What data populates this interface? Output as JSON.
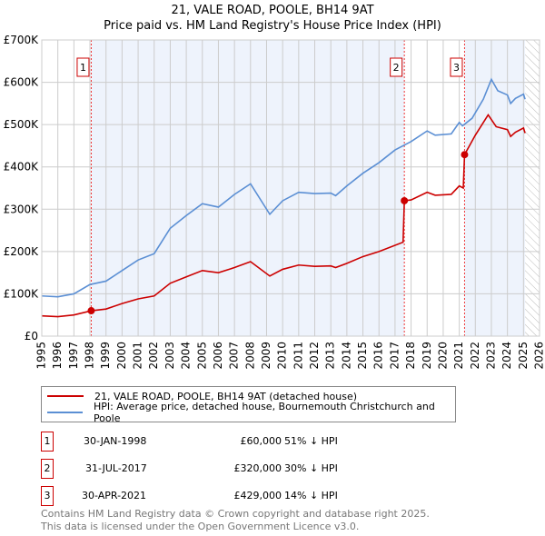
{
  "chart_data": {
    "type": "line",
    "title": "21, VALE ROAD, POOLE, BH14 9AT",
    "subtitle": "Price paid vs. HM Land Registry's House Price Index (HPI)",
    "xlim": [
      1995,
      2026
    ],
    "ylim": [
      0,
      700000
    ],
    "y_ticks": [
      {
        "v": 0,
        "l": "£0"
      },
      {
        "v": 100000,
        "l": "£100K"
      },
      {
        "v": 200000,
        "l": "£200K"
      },
      {
        "v": 300000,
        "l": "£300K"
      },
      {
        "v": 400000,
        "l": "£400K"
      },
      {
        "v": 500000,
        "l": "£500K"
      },
      {
        "v": 600000,
        "l": "£600K"
      },
      {
        "v": 700000,
        "l": "£700K"
      }
    ],
    "x_ticks": [
      "1995",
      "1996",
      "1997",
      "1998",
      "1999",
      "2000",
      "2001",
      "2002",
      "2003",
      "2004",
      "2005",
      "2006",
      "2007",
      "2008",
      "2009",
      "2010",
      "2011",
      "2012",
      "2013",
      "2014",
      "2015",
      "2016",
      "2017",
      "2018",
      "2019",
      "2020",
      "2021",
      "2022",
      "2023",
      "2024",
      "2025",
      "2026"
    ],
    "grid": true,
    "series": [
      {
        "name": "21, VALE ROAD, POOLE, BH14 9AT (detached house)",
        "color": "#cc0000",
        "x": [
          1995,
          1996,
          1997,
          1998.08,
          1999,
          2000,
          2001,
          2002,
          2003,
          2004,
          2005,
          2006,
          2007,
          2008,
          2009.2,
          2010,
          2011,
          2012,
          2013,
          2013.3,
          2014,
          2015,
          2016,
          2017.5,
          2017.58,
          2018,
          2019,
          2019.5,
          2020.5,
          2021,
          2021.25,
          2021.33,
          2022,
          2022.8,
          2023.3,
          2024,
          2024.2,
          2024.5,
          2025,
          2025.1
        ],
        "y": [
          48000,
          46000,
          50000,
          60000,
          64000,
          77000,
          88000,
          95000,
          125000,
          140000,
          155000,
          150000,
          162000,
          176000,
          142000,
          158000,
          168000,
          165000,
          166000,
          162000,
          172000,
          188000,
          200000,
          222000,
          320000,
          322000,
          340000,
          333000,
          335000,
          355000,
          350000,
          429000,
          475000,
          523000,
          495000,
          488000,
          472000,
          482000,
          492000,
          480000
        ]
      },
      {
        "name": "HPI: Average price, detached house, Bournemouth Christchurch and Poole",
        "color": "#5b8fd4",
        "x": [
          1995,
          1996,
          1997,
          1998,
          1999,
          2000,
          2001,
          2002,
          2003,
          2004,
          2005,
          2006,
          2007,
          2008,
          2009.2,
          2010,
          2011,
          2012,
          2013,
          2013.3,
          2014,
          2015,
          2016,
          2017,
          2018,
          2019,
          2019.5,
          2020.5,
          2021,
          2021.2,
          2021.8,
          2022.5,
          2023,
          2023.4,
          2024,
          2024.2,
          2024.5,
          2025,
          2025.1
        ],
        "y": [
          95000,
          93000,
          100000,
          122000,
          130000,
          155000,
          180000,
          195000,
          255000,
          285000,
          313000,
          305000,
          335000,
          360000,
          288000,
          320000,
          340000,
          337000,
          338000,
          332000,
          355000,
          385000,
          410000,
          440000,
          460000,
          485000,
          475000,
          478000,
          505000,
          497000,
          515000,
          560000,
          607000,
          580000,
          570000,
          550000,
          562000,
          572000,
          560000
        ]
      }
    ],
    "sales": [
      {
        "id": "1",
        "x": 1998.08,
        "y": 60000,
        "date": "30-JAN-1998",
        "price": "£60,000",
        "hpi": "51% ↓ HPI"
      },
      {
        "id": "2",
        "x": 2017.58,
        "y": 320000,
        "date": "31-JUL-2017",
        "price": "£320,000",
        "hpi": "30% ↓ HPI"
      },
      {
        "id": "3",
        "x": 2021.33,
        "y": 429000,
        "date": "30-APR-2021",
        "price": "£429,000",
        "hpi": "14% ↓ HPI"
      }
    ],
    "legend_placement": "below"
  },
  "footer": [
    "Contains HM Land Registry data © Crown copyright and database right 2025.",
    "This data is licensed under the Open Government Licence v3.0."
  ]
}
